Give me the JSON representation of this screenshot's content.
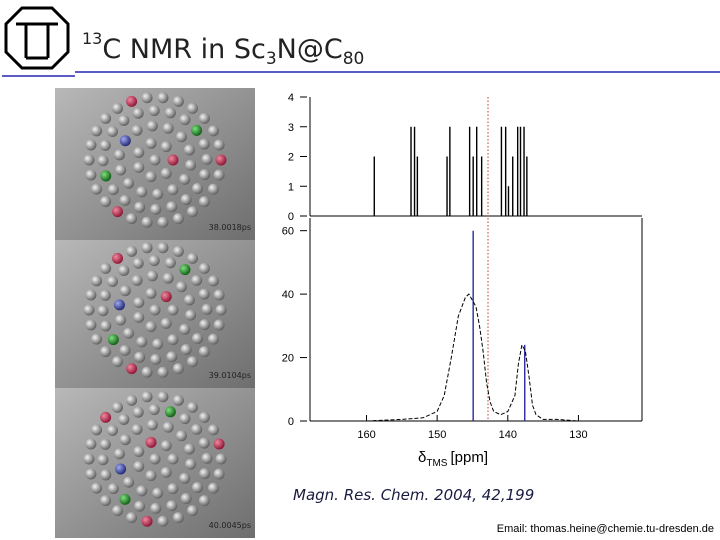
{
  "title": {
    "sup": "13",
    "main": "C NMR in Sc",
    "sub1": "3",
    "mid": "N@C",
    "sub2": "80"
  },
  "snapshots": [
    "38.0018ps",
    "39.0104ps",
    "40.0045ps"
  ],
  "x_label": {
    "symbol": "δ",
    "sub": "TMS",
    "unit": "[ppm]"
  },
  "citation": "Magn. Res. Chem. 2004, 42,199",
  "email": "Email: thomas.heine@chemie.tu-dresden.de",
  "chart_data": [
    {
      "type": "bar",
      "color": "#000000",
      "x": [
        158.9,
        153.7,
        153.2,
        152.8,
        148.6,
        148.2,
        145.4,
        144.9,
        144.4,
        143.7,
        140.9,
        140.3,
        139.9,
        139.3,
        138.6,
        138.2,
        137.7,
        137.3
      ],
      "values": [
        2,
        3,
        3,
        2,
        2,
        3,
        3,
        2,
        3,
        2,
        3,
        3,
        1,
        2,
        3,
        3,
        3,
        2
      ],
      "xlim": [
        168,
        121
      ],
      "ylim": [
        0,
        4
      ],
      "yticks": [
        0,
        1,
        2,
        3,
        4
      ],
      "reference_line": {
        "value": 142.8,
        "color": "#c0392b"
      }
    },
    {
      "type": "line",
      "x": [
        160,
        155,
        152,
        150,
        149,
        148,
        147,
        146,
        145.5,
        145,
        144.5,
        144,
        143.5,
        143,
        142.5,
        142,
        141,
        140,
        139,
        138.5,
        138,
        137.5,
        137,
        136.5,
        136,
        135,
        133,
        130,
        125
      ],
      "series": [
        {
          "color": "#000000",
          "values": [
            0,
            0.5,
            1,
            3,
            8,
            20,
            33,
            39,
            40,
            38,
            36,
            30,
            22,
            12,
            6,
            3,
            2,
            3,
            8,
            18,
            24,
            22,
            14,
            5,
            2,
            0.5,
            0.5,
            0,
            0
          ]
        }
      ],
      "sticks": {
        "x": [
          144.9,
          137.6
        ],
        "values": [
          60,
          24
        ],
        "color": "#2a2aa0"
      },
      "xlim": [
        168,
        121
      ],
      "ylim": [
        0,
        64
      ],
      "yticks": [
        0,
        20,
        40,
        60
      ],
      "xticks": [
        160,
        150,
        140,
        130
      ],
      "reference_line": {
        "value": 142.8,
        "color": "#c0392b"
      }
    }
  ]
}
